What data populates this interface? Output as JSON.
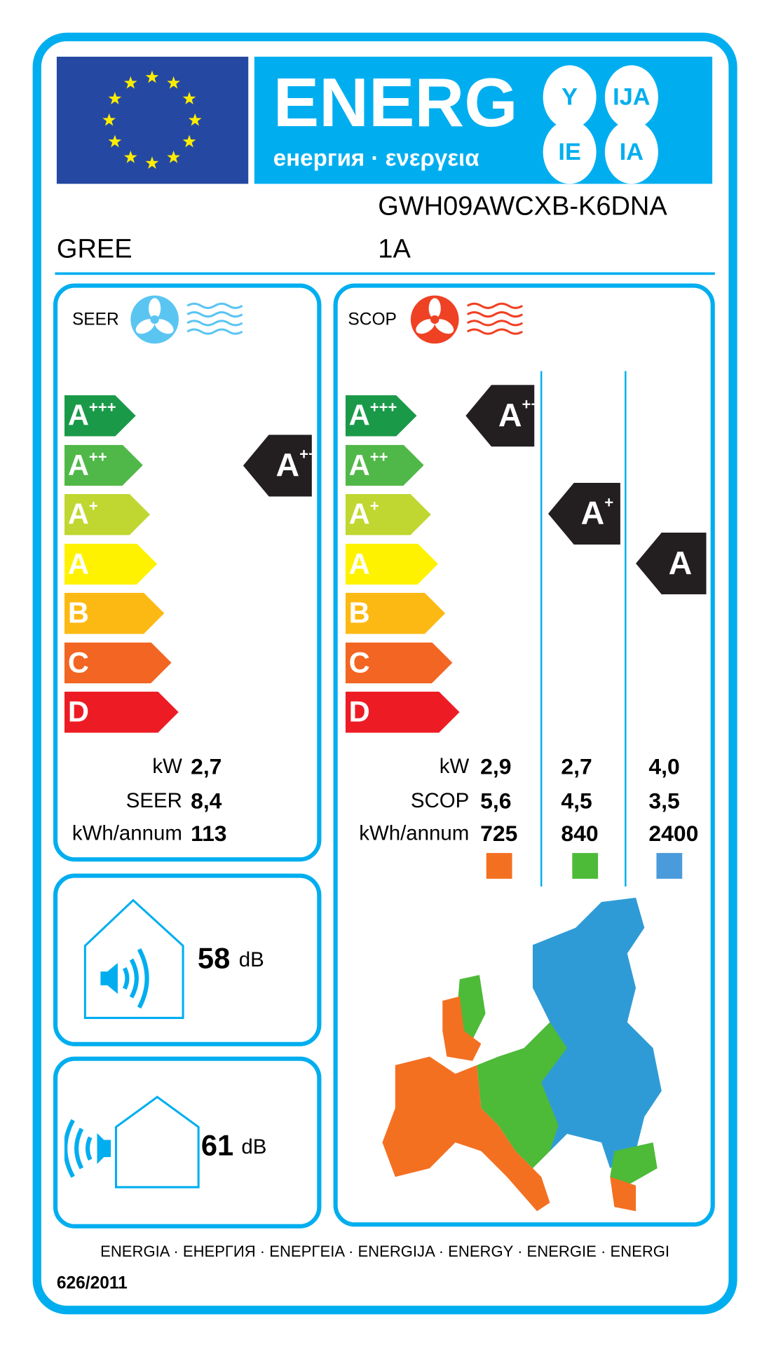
{
  "header": {
    "energy_title": "ENERG",
    "energy_subtitle": "енергия · ενεργεια",
    "lang_suffixes": [
      "Y",
      "IJA",
      "IE",
      "IA"
    ],
    "eu_flag": "eu-flag-stars"
  },
  "supplier": "GREE",
  "model": "GWH09AWCXB-K6DNA",
  "model_line2": "1A",
  "classes": [
    {
      "letter": "A",
      "sup": "+++",
      "color": "#1A9A49"
    },
    {
      "letter": "A",
      "sup": "++",
      "color": "#50B848"
    },
    {
      "letter": "A",
      "sup": "+",
      "color": "#BFD730"
    },
    {
      "letter": "A",
      "sup": "",
      "color": "#FFF200"
    },
    {
      "letter": "B",
      "sup": "",
      "color": "#FDB913"
    },
    {
      "letter": "C",
      "sup": "",
      "color": "#F26522"
    },
    {
      "letter": "D",
      "sup": "",
      "color": "#ED1C24"
    }
  ],
  "cooling": {
    "title": "SEER",
    "icon": "fan-cooling-icon",
    "rating": {
      "letter": "A",
      "sup": "++"
    },
    "rows": [
      {
        "label": "kW",
        "value": "2,7"
      },
      {
        "label": "SEER",
        "value": "8,4"
      },
      {
        "label": "kWh/annum",
        "value": "113"
      }
    ]
  },
  "heating": {
    "title": "SCOP",
    "icon": "fan-heating-icon",
    "labels": [
      "kW",
      "SCOP",
      "kWh/annum"
    ],
    "zones": [
      {
        "rating": {
          "letter": "A",
          "sup": "+++"
        },
        "values": [
          "2,9",
          "5,6",
          "725"
        ],
        "color": "#F37021"
      },
      {
        "rating": {
          "letter": "A",
          "sup": "+"
        },
        "values": [
          "2,7",
          "4,5",
          "840"
        ],
        "color": "#4DBA38"
      },
      {
        "rating": {
          "letter": "A",
          "sup": ""
        },
        "values": [
          "4,0",
          "3,5",
          "2400"
        ],
        "color": "#4A9BDB"
      }
    ]
  },
  "noise": {
    "indoor": {
      "value": "58",
      "unit": "dB"
    },
    "outdoor": {
      "value": "61",
      "unit": "dB"
    }
  },
  "footer": {
    "languages": "ENERGIA · ЕНЕРГИЯ · ΕΝΕΡΓΕΙΑ · ENERGIJA · ENERGY · ENERGIE · ENERGI",
    "regulation": "626/2011"
  },
  "colors": {
    "frame": "#00AEEF",
    "flag": "#2549A2",
    "indicator": "#231F20"
  }
}
